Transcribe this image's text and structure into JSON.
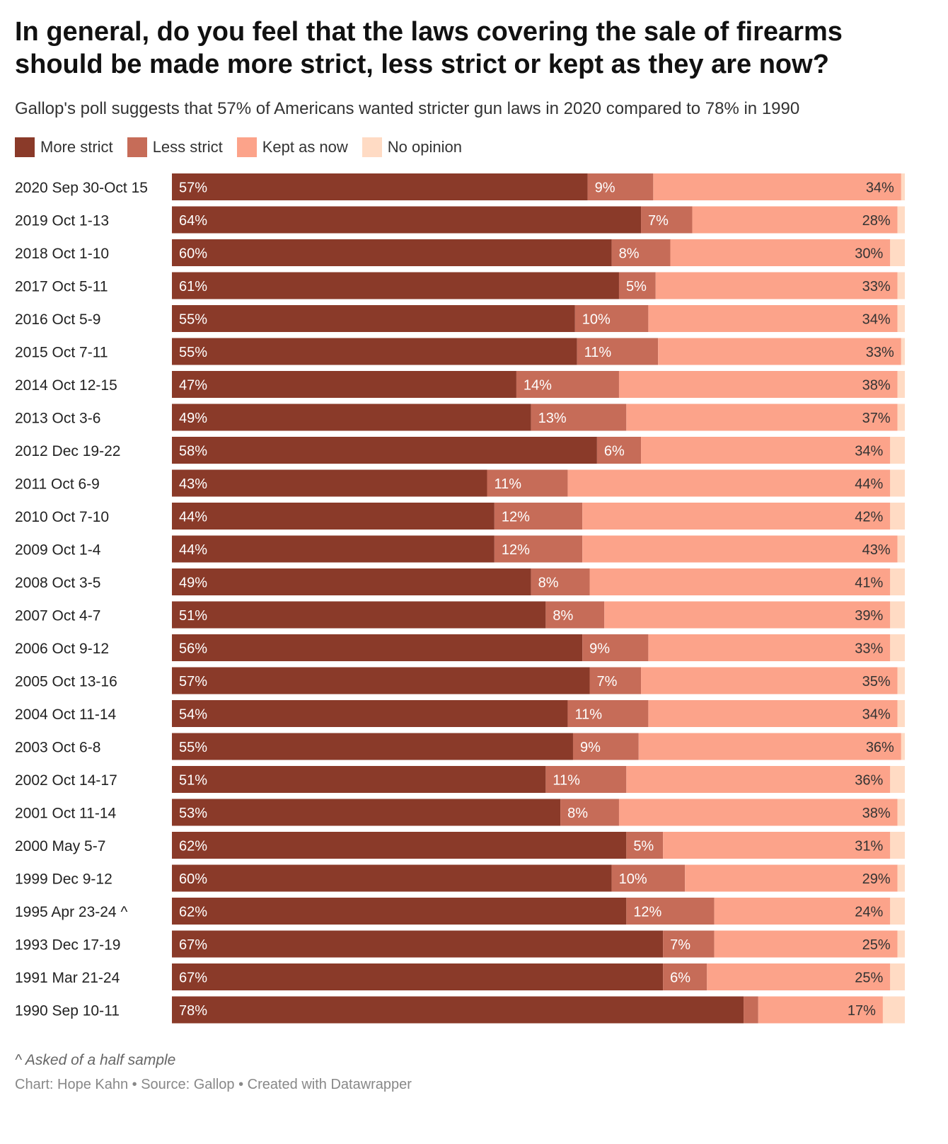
{
  "title": "In general, do you feel that the laws covering the sale of firearms should be made more strict, less strict or kept as they are now?",
  "subtitle": "Gallop's poll suggests that 57% of Americans wanted stricter gun laws in 2020 compared to 78% in 1990",
  "legend": [
    {
      "label": "More strict",
      "color": "#8a3a29"
    },
    {
      "label": "Less strict",
      "color": "#c66c58"
    },
    {
      "label": "Kept as now",
      "color": "#fca38a"
    },
    {
      "label": "No opinion",
      "color": "#ffdbc4"
    }
  ],
  "footnote": "^ Asked of a half sample",
  "credit": "Chart: Hope Kahn • Source: Gallop • Created with Datawrapper",
  "chart_data": {
    "type": "bar",
    "orientation": "horizontal",
    "stacked": true,
    "xlim": [
      0,
      100
    ],
    "categories": [
      "2020 Sep 30-Oct 15",
      "2019 Oct 1-13",
      "2018 Oct 1-10",
      "2017 Oct 5-11",
      "2016 Oct 5-9",
      "2015 Oct 7-11",
      "2014 Oct 12-15",
      "2013 Oct 3-6",
      "2012 Dec 19-22",
      "2011 Oct 6-9",
      "2010 Oct 7-10",
      "2009 Oct 1-4",
      "2008 Oct 3-5",
      "2007 Oct 4-7",
      "2006 Oct 9-12",
      "2005 Oct 13-16",
      "2004 Oct 11-14",
      "2003 Oct 6-8",
      "2002 Oct 14-17",
      "2001 Oct 11-14",
      "2000 May 5-7",
      "1999 Dec 9-12",
      "1995 Apr 23-24 ^",
      "1993 Dec 17-19",
      "1991 Mar 21-24",
      "1990 Sep 10-11"
    ],
    "series": [
      {
        "name": "More strict",
        "color": "#8a3a29",
        "values": [
          57,
          64,
          60,
          61,
          55,
          55,
          47,
          49,
          58,
          43,
          44,
          44,
          49,
          51,
          56,
          57,
          54,
          55,
          51,
          53,
          62,
          60,
          62,
          67,
          67,
          78
        ],
        "labels": [
          "57%",
          "64%",
          "60%",
          "61%",
          "55%",
          "55%",
          "47%",
          "49%",
          "58%",
          "43%",
          "44%",
          "44%",
          "49%",
          "51%",
          "56%",
          "57%",
          "54%",
          "55%",
          "51%",
          "53%",
          "62%",
          "60%",
          "62%",
          "67%",
          "67%",
          "78%"
        ]
      },
      {
        "name": "Less strict",
        "color": "#c66c58",
        "values": [
          9,
          7,
          8,
          5,
          10,
          11,
          14,
          13,
          6,
          11,
          12,
          12,
          8,
          8,
          9,
          7,
          11,
          9,
          11,
          8,
          5,
          10,
          12,
          7,
          6,
          2
        ],
        "labels": [
          "9%",
          "7%",
          "8%",
          "5%",
          "10%",
          "11%",
          "14%",
          "13%",
          "6%",
          "11%",
          "12%",
          "12%",
          "8%",
          "8%",
          "9%",
          "7%",
          "11%",
          "9%",
          "11%",
          "8%",
          "5%",
          "10%",
          "12%",
          "7%",
          "6%",
          ""
        ]
      },
      {
        "name": "Kept as now",
        "color": "#fca38a",
        "values": [
          34,
          28,
          30,
          33,
          34,
          33,
          38,
          37,
          34,
          44,
          42,
          43,
          41,
          39,
          33,
          35,
          34,
          36,
          36,
          38,
          31,
          29,
          24,
          25,
          25,
          17
        ],
        "labels": [
          "34%",
          "28%",
          "30%",
          "33%",
          "34%",
          "33%",
          "38%",
          "37%",
          "34%",
          "44%",
          "42%",
          "43%",
          "41%",
          "39%",
          "33%",
          "35%",
          "34%",
          "36%",
          "36%",
          "38%",
          "31%",
          "29%",
          "24%",
          "25%",
          "25%",
          "17%"
        ]
      },
      {
        "name": "No opinion",
        "color": "#ffdbc4",
        "values": [
          0.5,
          1,
          2,
          1,
          1,
          0.5,
          1,
          1,
          2,
          2,
          2,
          1,
          2,
          2,
          2,
          1,
          1,
          0.5,
          2,
          1,
          2,
          1,
          2,
          1,
          2,
          3
        ],
        "labels": [
          "",
          "",
          "",
          "",
          "",
          "",
          "",
          "",
          "",
          "",
          "",
          "",
          "",
          "",
          "",
          "",
          "",
          "",
          "",
          "",
          "",
          "",
          "",
          "",
          "",
          ""
        ]
      }
    ]
  }
}
